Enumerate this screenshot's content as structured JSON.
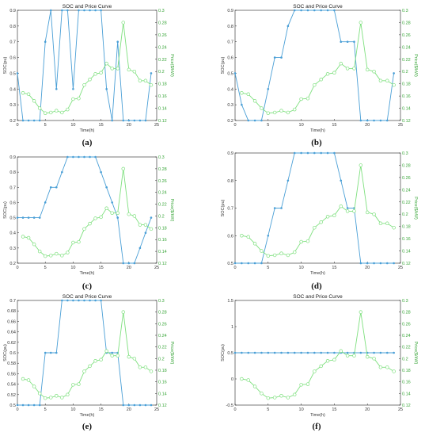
{
  "colors": {
    "soc": "#4a9fd6",
    "price": "#7fe07f",
    "axis": "#222222",
    "grid": "#e3e3e3"
  },
  "chart_data": [
    {
      "panel": "(a)",
      "type": "line",
      "title": "SOC and Price Curve",
      "xlabel": "Time(h)",
      "ylabel": "SOC(pu)",
      "ylabel_right": "Price($/kW)",
      "xlim": [
        0,
        25
      ],
      "ylim": [
        0.2,
        0.9
      ],
      "ylim_right": [
        0.12,
        0.3
      ],
      "xticks": [
        "0",
        "5",
        "10",
        "15",
        "20",
        "25"
      ],
      "yticks": [
        "0.2",
        "0.3",
        "0.4",
        "0.5",
        "0.6",
        "0.7",
        "0.8",
        "0.9"
      ],
      "yticks_right": [
        "0.12",
        "0.14",
        "0.16",
        "0.18",
        "0.2",
        "0.22",
        "0.24",
        "0.26",
        "0.28",
        "0.3"
      ],
      "grid": false,
      "series": [
        {
          "axis": "left",
          "x": [
            0,
            1,
            2,
            3,
            4,
            5,
            6,
            7,
            8,
            9,
            10,
            11,
            12,
            13,
            14,
            15,
            16,
            17,
            18,
            19,
            20,
            21,
            22,
            23,
            24
          ],
          "values": [
            0.5,
            0.2,
            0.2,
            0.2,
            0.2,
            0.7,
            0.9,
            0.4,
            0.9,
            0.9,
            0.4,
            0.9,
            0.9,
            0.9,
            0.9,
            0.9,
            0.4,
            0.2,
            0.7,
            0.2,
            0.2,
            0.2,
            0.2,
            0.2,
            0.5
          ]
        },
        {
          "axis": "right",
          "x": [
            1,
            2,
            3,
            4,
            5,
            6,
            7,
            8,
            9,
            10,
            11,
            12,
            13,
            14,
            15,
            16,
            17,
            18,
            19,
            20,
            21,
            22,
            23,
            24
          ],
          "values": [
            0.165,
            0.163,
            0.152,
            0.14,
            0.132,
            0.133,
            0.136,
            0.133,
            0.138,
            0.155,
            0.156,
            0.178,
            0.187,
            0.196,
            0.198,
            0.213,
            0.205,
            0.205,
            0.28,
            0.203,
            0.2,
            0.185,
            0.185,
            0.178
          ]
        }
      ]
    },
    {
      "panel": "(b)",
      "type": "line",
      "title": "SOC and Price Curve",
      "xlabel": "Time(h)",
      "ylabel": "SOC(pu)",
      "ylabel_right": "Price($/kW)",
      "xlim": [
        0,
        25
      ],
      "ylim": [
        0.2,
        0.9
      ],
      "ylim_right": [
        0.12,
        0.3
      ],
      "xticks": [
        "0",
        "5",
        "10",
        "15",
        "20",
        "25"
      ],
      "yticks": [
        "0.2",
        "0.3",
        "0.4",
        "0.5",
        "0.6",
        "0.7",
        "0.8",
        "0.9"
      ],
      "yticks_right": [
        "0.12",
        "0.14",
        "0.16",
        "0.18",
        "0.2",
        "0.22",
        "0.24",
        "0.26",
        "0.28",
        "0.3"
      ],
      "grid": false,
      "series": [
        {
          "axis": "left",
          "x": [
            0,
            1,
            2,
            3,
            4,
            5,
            6,
            7,
            8,
            9,
            10,
            11,
            12,
            13,
            14,
            15,
            16,
            17,
            18,
            19,
            20,
            21,
            22,
            23,
            24
          ],
          "values": [
            0.5,
            0.3,
            0.2,
            0.2,
            0.2,
            0.4,
            0.6,
            0.6,
            0.8,
            0.9,
            0.9,
            0.9,
            0.9,
            0.9,
            0.9,
            0.9,
            0.7,
            0.7,
            0.7,
            0.2,
            0.2,
            0.2,
            0.2,
            0.2,
            0.5
          ]
        },
        {
          "axis": "right",
          "x": [
            1,
            2,
            3,
            4,
            5,
            6,
            7,
            8,
            9,
            10,
            11,
            12,
            13,
            14,
            15,
            16,
            17,
            18,
            19,
            20,
            21,
            22,
            23,
            24
          ],
          "values": [
            0.165,
            0.163,
            0.152,
            0.14,
            0.132,
            0.133,
            0.136,
            0.133,
            0.138,
            0.155,
            0.156,
            0.178,
            0.187,
            0.196,
            0.198,
            0.213,
            0.205,
            0.205,
            0.28,
            0.203,
            0.2,
            0.185,
            0.185,
            0.178
          ]
        }
      ]
    },
    {
      "panel": "(c)",
      "type": "line",
      "title": "",
      "xlabel": "Time(h)",
      "ylabel": "SOC(pu)",
      "ylabel_right": "Price($/kW)",
      "xlim": [
        0,
        25
      ],
      "ylim": [
        0.2,
        0.9
      ],
      "ylim_right": [
        0.12,
        0.3
      ],
      "xticks": [
        "0",
        "5",
        "10",
        "15",
        "20",
        "25"
      ],
      "yticks": [
        "0.2",
        "0.3",
        "0.4",
        "0.5",
        "0.6",
        "0.7",
        "0.8",
        "0.9"
      ],
      "yticks_right": [
        "0.12",
        "0.14",
        "0.16",
        "0.18",
        "0.2",
        "0.22",
        "0.24",
        "0.26",
        "0.28",
        "0.3"
      ],
      "grid": false,
      "series": [
        {
          "axis": "left",
          "x": [
            0,
            1,
            2,
            3,
            4,
            5,
            6,
            7,
            8,
            9,
            10,
            11,
            12,
            13,
            14,
            15,
            16,
            17,
            18,
            19,
            20,
            21,
            22,
            23,
            24
          ],
          "values": [
            0.5,
            0.5,
            0.5,
            0.5,
            0.5,
            0.6,
            0.7,
            0.7,
            0.8,
            0.9,
            0.9,
            0.9,
            0.9,
            0.9,
            0.9,
            0.8,
            0.7,
            0.6,
            0.5,
            0.2,
            0.2,
            0.2,
            0.3,
            0.4,
            0.5
          ]
        },
        {
          "axis": "right",
          "x": [
            1,
            2,
            3,
            4,
            5,
            6,
            7,
            8,
            9,
            10,
            11,
            12,
            13,
            14,
            15,
            16,
            17,
            18,
            19,
            20,
            21,
            22,
            23,
            24
          ],
          "values": [
            0.165,
            0.163,
            0.152,
            0.14,
            0.132,
            0.133,
            0.136,
            0.133,
            0.138,
            0.155,
            0.156,
            0.178,
            0.187,
            0.196,
            0.198,
            0.213,
            0.205,
            0.205,
            0.28,
            0.203,
            0.2,
            0.185,
            0.185,
            0.178
          ]
        }
      ]
    },
    {
      "panel": "(d)",
      "type": "line",
      "title": "",
      "xlabel": "Time(h)",
      "ylabel": "SOC(pu)",
      "ylabel_right": "Price($/kW)",
      "xlim": [
        0,
        25
      ],
      "ylim": [
        0.5,
        0.9
      ],
      "ylim_right": [
        0.12,
        0.3
      ],
      "xticks": [
        "0",
        "5",
        "10",
        "15",
        "20",
        "25"
      ],
      "yticks": [
        "0.5",
        "0.6",
        "0.7",
        "0.8",
        "0.9"
      ],
      "yticks_right": [
        "0.12",
        "0.14",
        "0.16",
        "0.18",
        "0.2",
        "0.22",
        "0.24",
        "0.26",
        "0.28",
        "0.3"
      ],
      "grid": false,
      "series": [
        {
          "axis": "left",
          "x": [
            0,
            1,
            2,
            3,
            4,
            5,
            6,
            7,
            8,
            9,
            10,
            11,
            12,
            13,
            14,
            15,
            16,
            17,
            18,
            19,
            20,
            21,
            22,
            23,
            24
          ],
          "values": [
            0.5,
            0.5,
            0.5,
            0.5,
            0.5,
            0.6,
            0.7,
            0.7,
            0.8,
            0.9,
            0.9,
            0.9,
            0.9,
            0.9,
            0.9,
            0.9,
            0.8,
            0.7,
            0.7,
            0.5,
            0.5,
            0.5,
            0.5,
            0.5,
            0.5
          ]
        },
        {
          "axis": "right",
          "x": [
            1,
            2,
            3,
            4,
            5,
            6,
            7,
            8,
            9,
            10,
            11,
            12,
            13,
            14,
            15,
            16,
            17,
            18,
            19,
            20,
            21,
            22,
            23,
            24
          ],
          "values": [
            0.165,
            0.163,
            0.152,
            0.14,
            0.132,
            0.133,
            0.136,
            0.133,
            0.138,
            0.155,
            0.156,
            0.178,
            0.187,
            0.196,
            0.198,
            0.213,
            0.205,
            0.205,
            0.28,
            0.203,
            0.2,
            0.185,
            0.185,
            0.178
          ]
        }
      ]
    },
    {
      "panel": "(e)",
      "type": "line",
      "title": "SOC and Price Curve",
      "xlabel": "Time(h)",
      "ylabel": "SOC(pu)",
      "ylabel_right": "Price($/kW)",
      "xlim": [
        0,
        25
      ],
      "ylim": [
        0.5,
        0.7
      ],
      "ylim_right": [
        0.12,
        0.3
      ],
      "xticks": [
        "0",
        "5",
        "10",
        "15",
        "20",
        "25"
      ],
      "yticks": [
        "0.5",
        "0.52",
        "0.54",
        "0.56",
        "0.58",
        "0.6",
        "0.62",
        "0.64",
        "0.66",
        "0.68",
        "0.7"
      ],
      "yticks_right": [
        "0.12",
        "0.14",
        "0.16",
        "0.18",
        "0.2",
        "0.22",
        "0.24",
        "0.26",
        "0.28",
        "0.3"
      ],
      "grid": false,
      "series": [
        {
          "axis": "left",
          "x": [
            0,
            1,
            2,
            3,
            4,
            5,
            6,
            7,
            8,
            9,
            10,
            11,
            12,
            13,
            14,
            15,
            16,
            17,
            18,
            19,
            20,
            21,
            22,
            23,
            24
          ],
          "values": [
            0.5,
            0.5,
            0.5,
            0.5,
            0.5,
            0.6,
            0.6,
            0.6,
            0.7,
            0.7,
            0.7,
            0.7,
            0.7,
            0.7,
            0.7,
            0.7,
            0.6,
            0.6,
            0.6,
            0.5,
            0.5,
            0.5,
            0.5,
            0.5,
            0.5
          ]
        },
        {
          "axis": "right",
          "x": [
            1,
            2,
            3,
            4,
            5,
            6,
            7,
            8,
            9,
            10,
            11,
            12,
            13,
            14,
            15,
            16,
            17,
            18,
            19,
            20,
            21,
            22,
            23,
            24
          ],
          "values": [
            0.165,
            0.163,
            0.152,
            0.14,
            0.132,
            0.133,
            0.136,
            0.133,
            0.138,
            0.155,
            0.156,
            0.178,
            0.187,
            0.196,
            0.198,
            0.213,
            0.205,
            0.205,
            0.28,
            0.203,
            0.2,
            0.185,
            0.185,
            0.178
          ]
        }
      ]
    },
    {
      "panel": "(f)",
      "type": "line",
      "title": "SOC and Price Curve",
      "xlabel": "Time(h)",
      "ylabel": "SOC(pu)",
      "ylabel_right": "Price($/kW)",
      "xlim": [
        0,
        25
      ],
      "ylim": [
        -0.5,
        1.5
      ],
      "ylim_right": [
        0.12,
        0.3
      ],
      "xticks": [
        "0",
        "5",
        "10",
        "15",
        "20",
        "25"
      ],
      "yticks": [
        "-0.5",
        "0",
        "0.5",
        "1",
        "1.5"
      ],
      "yticks_right": [
        "0.12",
        "0.14",
        "0.16",
        "0.18",
        "0.2",
        "0.22",
        "0.24",
        "0.26",
        "0.28",
        "0.3"
      ],
      "grid": false,
      "series": [
        {
          "axis": "left",
          "x": [
            0,
            1,
            2,
            3,
            4,
            5,
            6,
            7,
            8,
            9,
            10,
            11,
            12,
            13,
            14,
            15,
            16,
            17,
            18,
            19,
            20,
            21,
            22,
            23,
            24
          ],
          "values": [
            0.5,
            0.5,
            0.5,
            0.5,
            0.5,
            0.5,
            0.5,
            0.5,
            0.5,
            0.5,
            0.5,
            0.5,
            0.5,
            0.5,
            0.5,
            0.5,
            0.5,
            0.5,
            0.5,
            0.5,
            0.5,
            0.5,
            0.5,
            0.5,
            0.5
          ]
        },
        {
          "axis": "right",
          "x": [
            1,
            2,
            3,
            4,
            5,
            6,
            7,
            8,
            9,
            10,
            11,
            12,
            13,
            14,
            15,
            16,
            17,
            18,
            19,
            20,
            21,
            22,
            23,
            24
          ],
          "values": [
            0.165,
            0.163,
            0.152,
            0.14,
            0.132,
            0.133,
            0.136,
            0.133,
            0.138,
            0.155,
            0.156,
            0.178,
            0.187,
            0.196,
            0.198,
            0.213,
            0.205,
            0.205,
            0.28,
            0.203,
            0.2,
            0.185,
            0.185,
            0.178
          ]
        }
      ]
    }
  ]
}
